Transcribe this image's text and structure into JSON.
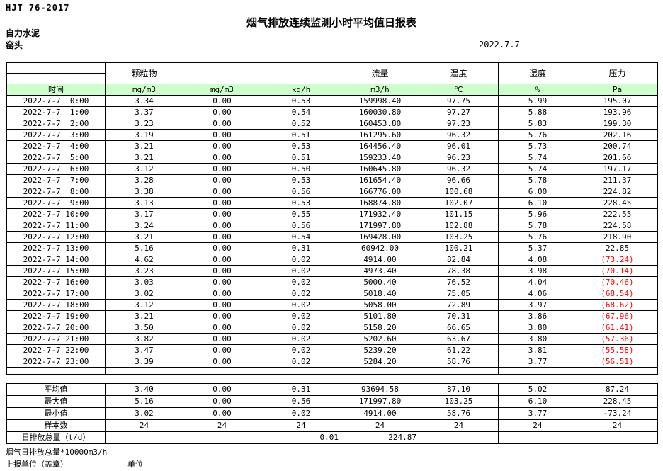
{
  "header": {
    "standard": "HJT  76-2017",
    "title": "烟气排放连续监测小时平均值日报表",
    "company": "自力水泥",
    "station": "窑头",
    "date": "2022.7.7"
  },
  "colors": {
    "header_green": "#ccffcc",
    "negative_red": "#ff0000"
  },
  "table": {
    "group_headers": {
      "time": "",
      "pm": "颗粒物",
      "c2": "",
      "c3": "",
      "flow": "流量",
      "temp": "温度",
      "hum": "湿度",
      "press": "压力"
    },
    "units": {
      "time": "时间",
      "pm": "mg/m3",
      "c2": "mg/m3",
      "c3": "kg/h",
      "flow": "m3/h",
      "temp": "℃",
      "hum": "%",
      "press": "Pa"
    },
    "rows": [
      {
        "time": "2022-7-7  0:00",
        "pm": "3.34",
        "c2": "0.00",
        "c3": "0.53",
        "flow": "159998.40",
        "temp": "97.75",
        "hum": "5.99",
        "press": "195.07"
      },
      {
        "time": "2022-7-7  1:00",
        "pm": "3.37",
        "c2": "0.00",
        "c3": "0.54",
        "flow": "160030.80",
        "temp": "97.27",
        "hum": "5.88",
        "press": "193.96"
      },
      {
        "time": "2022-7-7  2:00",
        "pm": "3.23",
        "c2": "0.00",
        "c3": "0.52",
        "flow": "160453.80",
        "temp": "97.23",
        "hum": "5.83",
        "press": "199.30"
      },
      {
        "time": "2022-7-7  3:00",
        "pm": "3.19",
        "c2": "0.00",
        "c3": "0.51",
        "flow": "161295.60",
        "temp": "96.32",
        "hum": "5.76",
        "press": "202.16"
      },
      {
        "time": "2022-7-7  4:00",
        "pm": "3.21",
        "c2": "0.00",
        "c3": "0.53",
        "flow": "164456.40",
        "temp": "96.01",
        "hum": "5.73",
        "press": "200.74"
      },
      {
        "time": "2022-7-7  5:00",
        "pm": "3.21",
        "c2": "0.00",
        "c3": "0.51",
        "flow": "159233.40",
        "temp": "96.23",
        "hum": "5.74",
        "press": "201.66"
      },
      {
        "time": "2022-7-7  6:00",
        "pm": "3.12",
        "c2": "0.00",
        "c3": "0.50",
        "flow": "160645.80",
        "temp": "96.32",
        "hum": "5.74",
        "press": "197.17"
      },
      {
        "time": "2022-7-7  7:00",
        "pm": "3.28",
        "c2": "0.00",
        "c3": "0.53",
        "flow": "161654.40",
        "temp": "96.66",
        "hum": "5.78",
        "press": "211.37"
      },
      {
        "time": "2022-7-7  8:00",
        "pm": "3.38",
        "c2": "0.00",
        "c3": "0.56",
        "flow": "166776.00",
        "temp": "100.68",
        "hum": "6.00",
        "press": "224.82"
      },
      {
        "time": "2022-7-7  9:00",
        "pm": "3.13",
        "c2": "0.00",
        "c3": "0.53",
        "flow": "168874.80",
        "temp": "102.07",
        "hum": "6.10",
        "press": "228.45"
      },
      {
        "time": "2022-7-7 10:00",
        "pm": "3.17",
        "c2": "0.00",
        "c3": "0.55",
        "flow": "171932.40",
        "temp": "101.15",
        "hum": "5.96",
        "press": "222.55"
      },
      {
        "time": "2022-7-7 11:00",
        "pm": "3.24",
        "c2": "0.00",
        "c3": "0.56",
        "flow": "171997.80",
        "temp": "102.88",
        "hum": "5.78",
        "press": "224.58"
      },
      {
        "time": "2022-7-7 12:00",
        "pm": "3.21",
        "c2": "0.00",
        "c3": "0.54",
        "flow": "169428.00",
        "temp": "103.25",
        "hum": "5.76",
        "press": "218.90"
      },
      {
        "time": "2022-7-7 13:00",
        "pm": "5.16",
        "c2": "0.00",
        "c3": "0.31",
        "flow": "60942.00",
        "temp": "100.21",
        "hum": "5.37",
        "press": "22.85"
      },
      {
        "time": "2022-7-7 14:00",
        "pm": "4.62",
        "c2": "0.00",
        "c3": "0.02",
        "flow": "4914.00",
        "temp": "82.84",
        "hum": "4.08",
        "press": "(73.24)"
      },
      {
        "time": "2022-7-7 15:00",
        "pm": "3.23",
        "c2": "0.00",
        "c3": "0.02",
        "flow": "4973.40",
        "temp": "78.38",
        "hum": "3.98",
        "press": "(70.14)"
      },
      {
        "time": "2022-7-7 16:00",
        "pm": "3.03",
        "c2": "0.00",
        "c3": "0.02",
        "flow": "5000.40",
        "temp": "76.52",
        "hum": "4.04",
        "press": "(70.46)"
      },
      {
        "time": "2022-7-7 17:00",
        "pm": "3.02",
        "c2": "0.00",
        "c3": "0.02",
        "flow": "5018.40",
        "temp": "75.05",
        "hum": "4.06",
        "press": "(68.54)"
      },
      {
        "time": "2022-7-7 18:00",
        "pm": "3.12",
        "c2": "0.00",
        "c3": "0.02",
        "flow": "5058.00",
        "temp": "72.89",
        "hum": "3.97",
        "press": "(68.62)"
      },
      {
        "time": "2022-7-7 19:00",
        "pm": "3.21",
        "c2": "0.00",
        "c3": "0.02",
        "flow": "5101.80",
        "temp": "70.31",
        "hum": "3.86",
        "press": "(67.96)"
      },
      {
        "time": "2022-7-7 20:00",
        "pm": "3.50",
        "c2": "0.00",
        "c3": "0.02",
        "flow": "5158.20",
        "temp": "66.65",
        "hum": "3.80",
        "press": "(61.41)"
      },
      {
        "time": "2022-7-7 21:00",
        "pm": "3.82",
        "c2": "0.00",
        "c3": "0.02",
        "flow": "5202.60",
        "temp": "63.67",
        "hum": "3.80",
        "press": "(57.36)"
      },
      {
        "time": "2022-7-7 22:00",
        "pm": "3.47",
        "c2": "0.00",
        "c3": "0.02",
        "flow": "5239.20",
        "temp": "61.22",
        "hum": "3.81",
        "press": "(55.58)"
      },
      {
        "time": "2022-7-7 23:00",
        "pm": "3.39",
        "c2": "0.00",
        "c3": "0.02",
        "flow": "5284.20",
        "temp": "58.76",
        "hum": "3.77",
        "press": "(56.51)"
      }
    ]
  },
  "summary": {
    "rows": [
      {
        "label": "平均值",
        "pm": "3.40",
        "c2": "0.00",
        "c3": "0.31",
        "flow": "93694.58",
        "temp": "87.10",
        "hum": "5.02",
        "press": "87.24"
      },
      {
        "label": "最大值",
        "pm": "5.16",
        "c2": "0.00",
        "c3": "0.56",
        "flow": "171997.80",
        "temp": "103.25",
        "hum": "6.10",
        "press": "228.45"
      },
      {
        "label": "最小值",
        "pm": "3.02",
        "c2": "0.00",
        "c3": "0.02",
        "flow": "4914.00",
        "temp": "58.76",
        "hum": "3.77",
        "press": "-73.24"
      },
      {
        "label": "样本数",
        "pm": "24",
        "c2": "24",
        "c3": "24",
        "flow": "24",
        "temp": "24",
        "hum": "24",
        "press": "24"
      },
      {
        "label": "日排放总量（t/d）",
        "pm": "",
        "c2": "",
        "c3": "0.01",
        "flow": "224.87",
        "temp": "",
        "hum": "",
        "press": ""
      }
    ]
  },
  "footer": {
    "note": "烟气日排放总量*10000m3/h",
    "report_unit_label": "上报单位（盖章）",
    "unit_label": "单位"
  }
}
